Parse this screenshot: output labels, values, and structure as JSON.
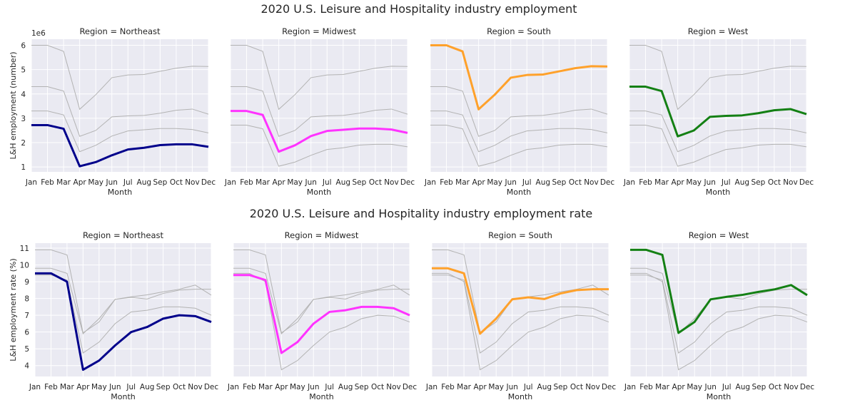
{
  "chart_data": [
    {
      "type": "line",
      "title": "2020 U.S. Leisure and Hospitality industry employment",
      "ylabel": "L&H employment (number)",
      "xlabel": "Month",
      "y_offset_label": "1e6",
      "x": [
        "Jan",
        "Feb",
        "Mar",
        "Apr",
        "May",
        "Jun",
        "Jul",
        "Aug",
        "Sep",
        "Oct",
        "Nov",
        "Dec"
      ],
      "ylim": [
        0.8,
        6.25
      ],
      "yticks": [
        1,
        2,
        3,
        4,
        5,
        6
      ],
      "ytick_labels": [
        "1",
        "2",
        "3",
        "4",
        "5",
        "6"
      ],
      "grid": true,
      "series": [
        {
          "name": "Northeast",
          "values": [
            2.72,
            2.72,
            2.57,
            1.03,
            1.2,
            1.48,
            1.72,
            1.79,
            1.9,
            1.93,
            1.93,
            1.83
          ]
        },
        {
          "name": "Midwest",
          "values": [
            3.3,
            3.3,
            3.14,
            1.63,
            1.89,
            2.27,
            2.48,
            2.53,
            2.58,
            2.58,
            2.54,
            2.4
          ]
        },
        {
          "name": "South",
          "values": [
            6.0,
            6.0,
            5.75,
            3.37,
            3.97,
            4.67,
            4.78,
            4.8,
            4.93,
            5.06,
            5.14,
            5.13
          ]
        },
        {
          "name": "West",
          "values": [
            4.3,
            4.3,
            4.12,
            2.26,
            2.5,
            3.06,
            3.1,
            3.12,
            3.21,
            3.33,
            3.38,
            3.17
          ]
        }
      ],
      "panels": [
        {
          "title": "Region = Northeast",
          "highlight": "Northeast",
          "color": "#00008b"
        },
        {
          "title": "Region = Midwest",
          "highlight": "Midwest",
          "color": "#ff33ff"
        },
        {
          "title": "Region = South",
          "highlight": "South",
          "color": "#ffa12b"
        },
        {
          "title": "Region = West",
          "highlight": "West",
          "color": "#148014"
        }
      ]
    },
    {
      "type": "line",
      "title": "2020 U.S. Leisure and Hospitality industry employment rate",
      "ylabel": "L&H employment rate (%)",
      "xlabel": "Month",
      "x": [
        "Jan",
        "Feb",
        "Mar",
        "Apr",
        "May",
        "Jun",
        "Jul",
        "Aug",
        "Sep",
        "Oct",
        "Nov",
        "Dec"
      ],
      "ylim": [
        3.35,
        11.3
      ],
      "yticks": [
        4,
        5,
        6,
        7,
        8,
        9,
        10,
        11
      ],
      "ytick_labels": [
        "4",
        "5",
        "6",
        "7",
        "8",
        "9",
        "10",
        "11"
      ],
      "grid": true,
      "series": [
        {
          "name": "Northeast",
          "values": [
            9.5,
            9.5,
            9.0,
            3.75,
            4.3,
            5.2,
            6.0,
            6.3,
            6.8,
            7.0,
            6.95,
            6.6
          ]
        },
        {
          "name": "Midwest",
          "values": [
            9.4,
            9.4,
            9.1,
            4.75,
            5.4,
            6.5,
            7.2,
            7.3,
            7.5,
            7.5,
            7.42,
            7.0
          ]
        },
        {
          "name": "South",
          "values": [
            9.8,
            9.8,
            9.5,
            5.9,
            6.8,
            7.95,
            8.07,
            7.97,
            8.3,
            8.5,
            8.55,
            8.55
          ]
        },
        {
          "name": "West",
          "values": [
            10.9,
            10.9,
            10.6,
            5.95,
            6.6,
            7.95,
            8.1,
            8.22,
            8.4,
            8.55,
            8.8,
            8.2
          ]
        }
      ],
      "panels": [
        {
          "title": "Region = Northeast",
          "highlight": "Northeast",
          "color": "#00008b"
        },
        {
          "title": "Region = Midwest",
          "highlight": "Midwest",
          "color": "#ff33ff"
        },
        {
          "title": "Region = South",
          "highlight": "South",
          "color": "#ffa12b"
        },
        {
          "title": "Region = West",
          "highlight": "West",
          "color": "#148014"
        }
      ]
    }
  ]
}
